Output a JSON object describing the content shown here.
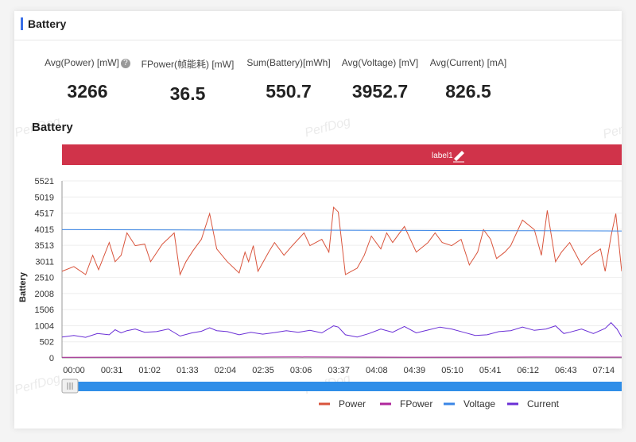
{
  "header": {
    "title": "Battery"
  },
  "watermark": "PerfDog",
  "stats": [
    {
      "label": "Avg(Power) [mW]",
      "value": "3266",
      "help": true
    },
    {
      "label": "FPower(帧能耗) [mW]",
      "value": "36.5"
    },
    {
      "label": "Sum(Battery)[mWh]",
      "value": "550.7"
    },
    {
      "label": "Avg(Voltage) [mV]",
      "value": "3952.7"
    },
    {
      "label": "Avg(Current) [mA]",
      "value": "826.5"
    }
  ],
  "chart": {
    "title": "Battery",
    "band_label": "label1",
    "band_color": "#d0334a",
    "slider_color": "#2f8ee8"
  },
  "chart_data": {
    "type": "line",
    "ylabel": "Battery",
    "ylim": [
      0,
      5521
    ],
    "yticks": [
      "5521",
      "5019",
      "4517",
      "4015",
      "3513",
      "3011",
      "2510",
      "2008",
      "1506",
      "1004",
      "502",
      "0"
    ],
    "xticks": [
      "00:00",
      "00:31",
      "01:02",
      "01:33",
      "02:04",
      "02:35",
      "03:06",
      "03:37",
      "04:08",
      "04:39",
      "05:10",
      "05:41",
      "06:12",
      "06:43",
      "07:14"
    ],
    "xrange_seconds": [
      0,
      474
    ],
    "grid": true,
    "legend_position": "bottom",
    "series": [
      {
        "name": "Power",
        "color": "#d9543c",
        "x": [
          0,
          10,
          20,
          26,
          31,
          40,
          45,
          50,
          55,
          62,
          70,
          75,
          85,
          95,
          100,
          105,
          111,
          118,
          125,
          131,
          140,
          150,
          155,
          158,
          162,
          166,
          175,
          180,
          188,
          195,
          205,
          210,
          220,
          226,
          230,
          234,
          240,
          245,
          250,
          256,
          262,
          270,
          275,
          280,
          290,
          300,
          310,
          316,
          322,
          330,
          338,
          345,
          352,
          357,
          363,
          368,
          375,
          380,
          390,
          400,
          406,
          411,
          418,
          423,
          430,
          440,
          448,
          456,
          460,
          465,
          469,
          474
        ],
        "values": [
          2700,
          2850,
          2600,
          3200,
          2750,
          3600,
          3000,
          3200,
          3900,
          3500,
          3550,
          3000,
          3550,
          3900,
          2600,
          3000,
          3350,
          3700,
          4500,
          3400,
          3000,
          2650,
          3300,
          3000,
          3500,
          2700,
          3300,
          3600,
          3200,
          3500,
          3900,
          3500,
          3700,
          3300,
          4700,
          4550,
          2600,
          2700,
          2800,
          3200,
          3800,
          3400,
          3900,
          3600,
          4100,
          3300,
          3600,
          3900,
          3600,
          3500,
          3700,
          2900,
          3300,
          4000,
          3700,
          3100,
          3300,
          3500,
          4300,
          4000,
          3200,
          4600,
          3000,
          3300,
          3600,
          2900,
          3200,
          3400,
          2700,
          3800,
          4500,
          2700
        ]
      },
      {
        "name": "FPower",
        "color": "#b0279c",
        "x": [
          0,
          100,
          200,
          300,
          400,
          474
        ],
        "values": [
          20,
          25,
          30,
          22,
          28,
          25
        ]
      },
      {
        "name": "Voltage",
        "color": "#3a85e6",
        "x": [
          0,
          100,
          200,
          300,
          400,
          474
        ],
        "values": [
          4000,
          3990,
          3985,
          3975,
          3965,
          3960
        ]
      },
      {
        "name": "Current",
        "color": "#6a2fd6",
        "x": [
          0,
          10,
          20,
          30,
          40,
          45,
          50,
          55,
          62,
          70,
          80,
          90,
          100,
          110,
          118,
          125,
          131,
          140,
          150,
          160,
          170,
          180,
          190,
          200,
          210,
          220,
          230,
          234,
          240,
          250,
          260,
          270,
          280,
          290,
          300,
          310,
          320,
          330,
          340,
          350,
          360,
          370,
          380,
          390,
          400,
          410,
          418,
          425,
          430,
          440,
          450,
          460,
          465,
          470,
          474
        ],
        "values": [
          650,
          700,
          640,
          760,
          720,
          880,
          780,
          850,
          900,
          800,
          820,
          900,
          680,
          780,
          830,
          940,
          850,
          820,
          720,
          800,
          740,
          790,
          850,
          800,
          860,
          780,
          1000,
          960,
          720,
          650,
          760,
          900,
          800,
          980,
          780,
          870,
          960,
          900,
          800,
          700,
          720,
          820,
          850,
          960,
          860,
          900,
          1000,
          760,
          800,
          900,
          760,
          920,
          1100,
          900,
          650
        ]
      }
    ]
  },
  "legend": [
    {
      "name": "Power",
      "color": "#d9543c"
    },
    {
      "name": "FPower",
      "color": "#b0279c"
    },
    {
      "name": "Voltage",
      "color": "#3a85e6"
    },
    {
      "name": "Current",
      "color": "#6a2fd6"
    }
  ]
}
